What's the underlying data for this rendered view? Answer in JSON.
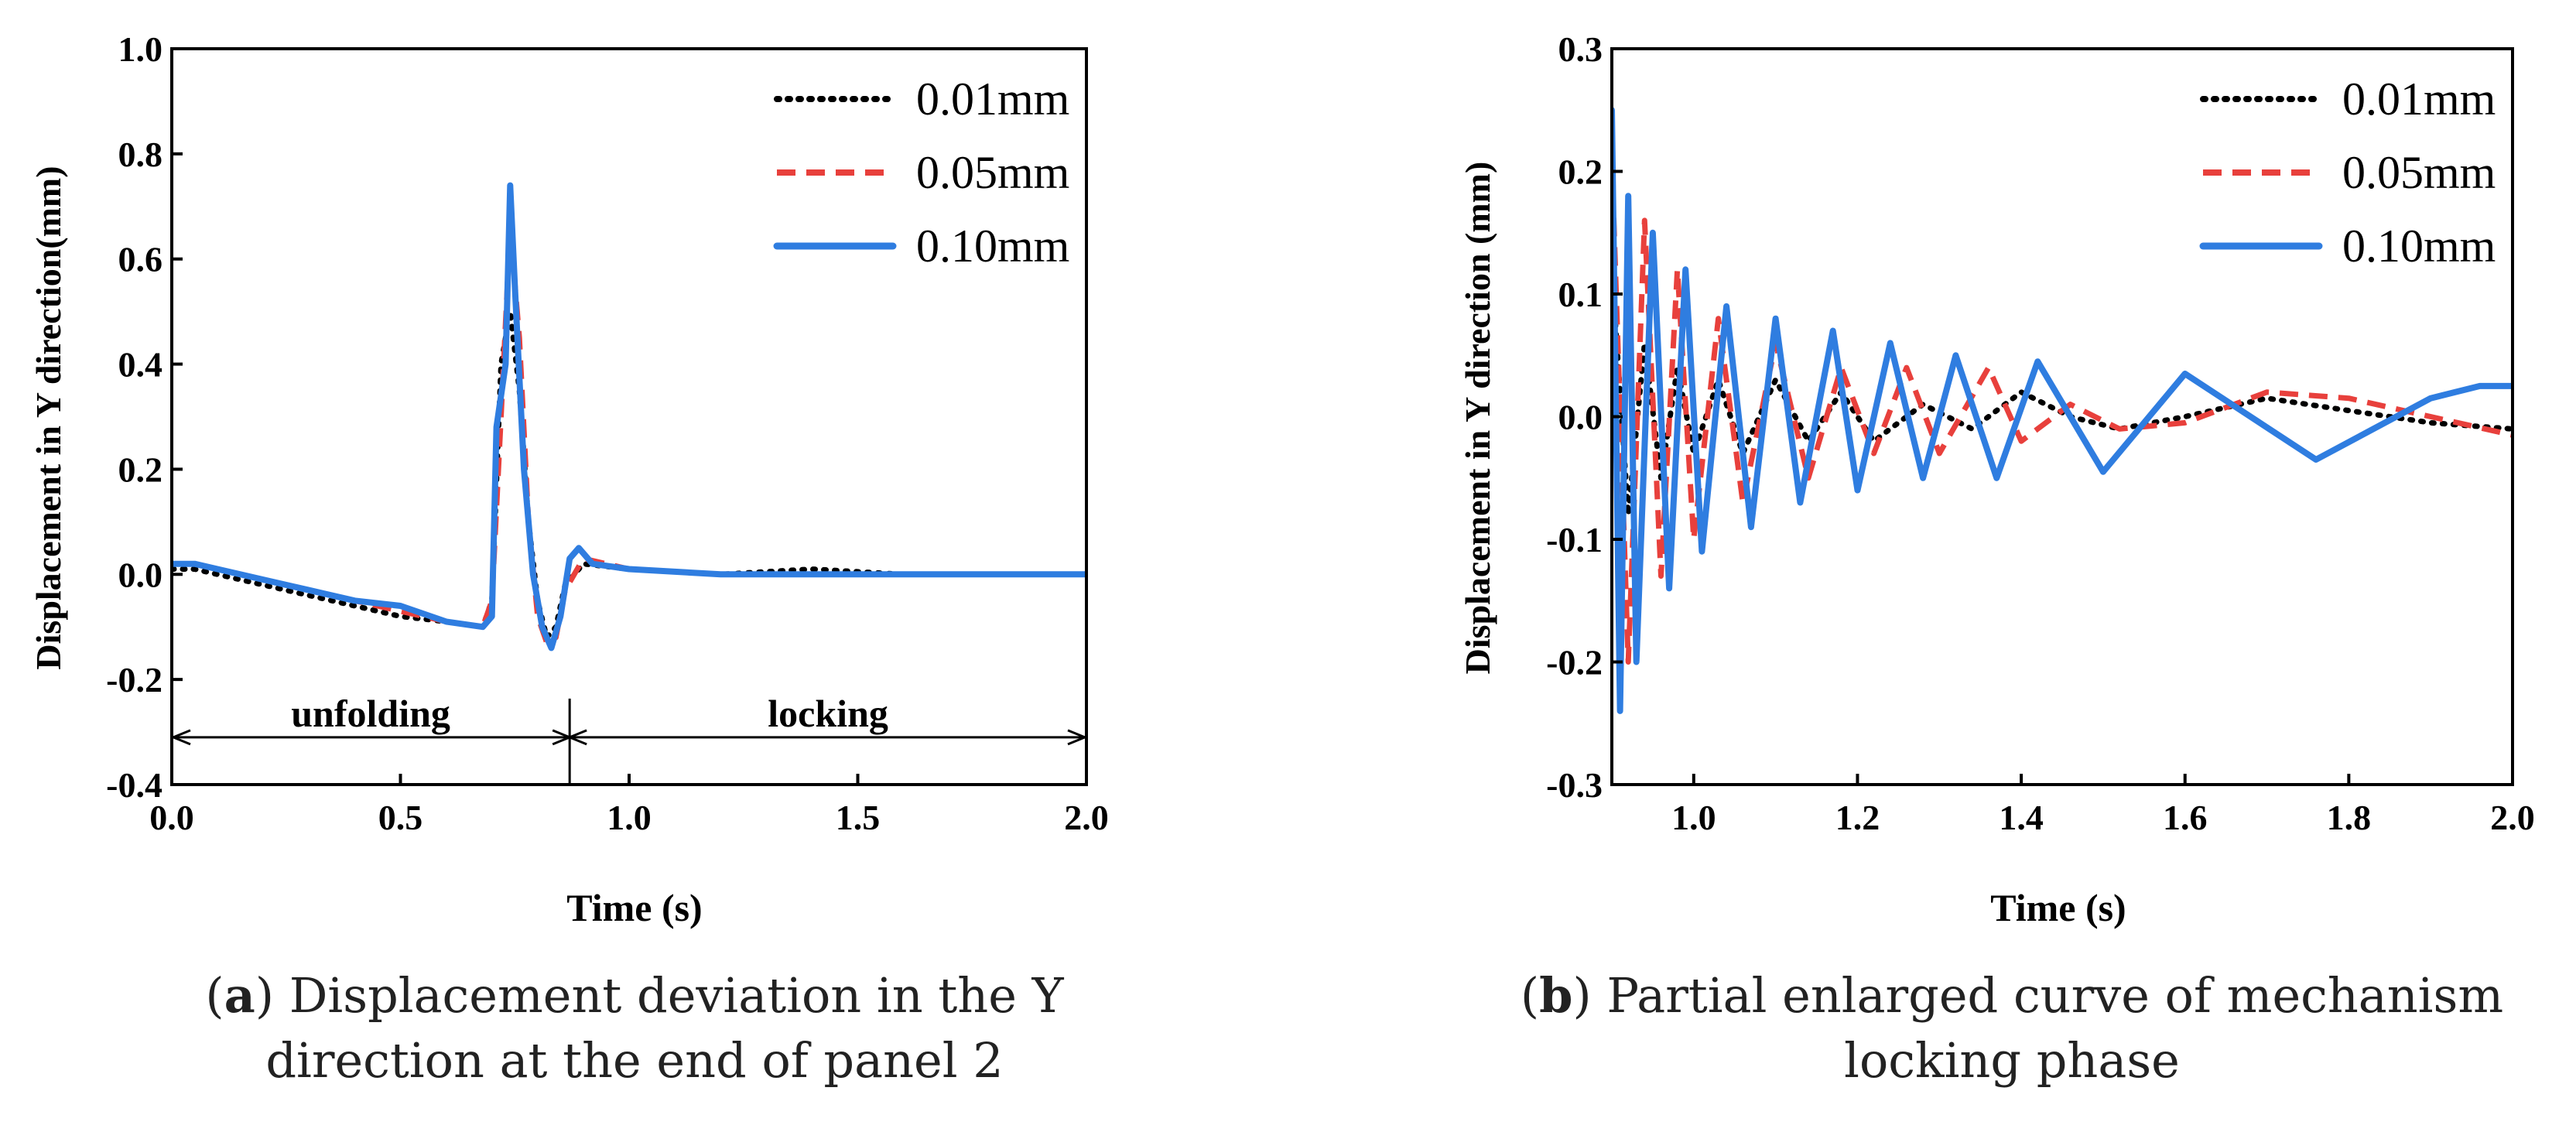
{
  "colors": {
    "s001": "#000000",
    "s005": "#e8403c",
    "s010": "#2f7de0",
    "axis": "#000000"
  },
  "captions": {
    "a_letter": "a",
    "a_text": "Displacement deviation in the Y direction at the end of panel 2",
    "b_letter": "b",
    "b_text": "Partial enlarged curve of mechanism locking phase"
  },
  "chart_data": [
    {
      "id": "a",
      "type": "line",
      "title": "",
      "xlabel": "Time (s)",
      "ylabel": "Displacement in Y direction(mm)",
      "xlim": [
        0.0,
        2.0
      ],
      "ylim": [
        -0.4,
        1.0
      ],
      "xticks": [
        0.0,
        0.5,
        1.0,
        1.5,
        2.0
      ],
      "xtick_labels": [
        "0.0",
        "0.5",
        "1.0",
        "1.5",
        "2.0"
      ],
      "yticks": [
        -0.4,
        -0.2,
        0.0,
        0.2,
        0.4,
        0.6,
        0.8,
        1.0
      ],
      "ytick_labels": [
        "-0.4",
        "-0.2",
        "0.0",
        "0.2",
        "0.4",
        "0.6",
        "0.8",
        "1.0"
      ],
      "legend_position": "top-right",
      "phase_annotations": {
        "y": -0.31,
        "divider_x": 0.87,
        "left_label": "unfolding",
        "right_label": "locking",
        "range": [
          0.0,
          2.0
        ]
      },
      "series": [
        {
          "name": "0.01mm",
          "style": "dotted",
          "points": [
            [
              0.0,
              0.01
            ],
            [
              0.05,
              0.01
            ],
            [
              0.1,
              0.0
            ],
            [
              0.2,
              -0.02
            ],
            [
              0.3,
              -0.04
            ],
            [
              0.4,
              -0.06
            ],
            [
              0.5,
              -0.08
            ],
            [
              0.6,
              -0.09
            ],
            [
              0.68,
              -0.1
            ],
            [
              0.7,
              -0.05
            ],
            [
              0.72,
              0.4
            ],
            [
              0.74,
              0.5
            ],
            [
              0.76,
              0.35
            ],
            [
              0.78,
              0.1
            ],
            [
              0.8,
              -0.05
            ],
            [
              0.82,
              -0.12
            ],
            [
              0.84,
              -0.1
            ],
            [
              0.86,
              -0.02
            ],
            [
              0.9,
              0.02
            ],
            [
              1.0,
              0.01
            ],
            [
              1.2,
              0.0
            ],
            [
              1.4,
              0.01
            ],
            [
              1.6,
              0.0
            ],
            [
              1.8,
              0.0
            ],
            [
              2.0,
              0.0
            ]
          ]
        },
        {
          "name": "0.05mm",
          "style": "dashed",
          "points": [
            [
              0.0,
              0.02
            ],
            [
              0.05,
              0.02
            ],
            [
              0.1,
              0.01
            ],
            [
              0.2,
              -0.01
            ],
            [
              0.3,
              -0.03
            ],
            [
              0.4,
              -0.05
            ],
            [
              0.5,
              -0.07
            ],
            [
              0.6,
              -0.09
            ],
            [
              0.68,
              -0.1
            ],
            [
              0.7,
              -0.05
            ],
            [
              0.72,
              0.3
            ],
            [
              0.74,
              0.66
            ],
            [
              0.76,
              0.45
            ],
            [
              0.78,
              0.1
            ],
            [
              0.8,
              -0.08
            ],
            [
              0.82,
              -0.13
            ],
            [
              0.84,
              -0.12
            ],
            [
              0.86,
              -0.03
            ],
            [
              0.9,
              0.03
            ],
            [
              1.0,
              0.01
            ],
            [
              1.2,
              0.0
            ],
            [
              1.4,
              0.0
            ],
            [
              1.6,
              0.0
            ],
            [
              1.8,
              0.0
            ],
            [
              2.0,
              0.0
            ]
          ]
        },
        {
          "name": "0.10mm",
          "style": "solid",
          "points": [
            [
              0.0,
              0.02
            ],
            [
              0.05,
              0.02
            ],
            [
              0.1,
              0.01
            ],
            [
              0.2,
              -0.01
            ],
            [
              0.3,
              -0.03
            ],
            [
              0.4,
              -0.05
            ],
            [
              0.5,
              -0.06
            ],
            [
              0.6,
              -0.09
            ],
            [
              0.68,
              -0.1
            ],
            [
              0.7,
              -0.08
            ],
            [
              0.71,
              0.28
            ],
            [
              0.73,
              0.4
            ],
            [
              0.74,
              0.74
            ],
            [
              0.75,
              0.55
            ],
            [
              0.77,
              0.2
            ],
            [
              0.79,
              0.0
            ],
            [
              0.81,
              -0.1
            ],
            [
              0.83,
              -0.14
            ],
            [
              0.85,
              -0.08
            ],
            [
              0.87,
              0.03
            ],
            [
              0.89,
              0.05
            ],
            [
              0.92,
              0.02
            ],
            [
              1.0,
              0.01
            ],
            [
              1.2,
              0.0
            ],
            [
              1.4,
              0.0
            ],
            [
              1.6,
              0.0
            ],
            [
              1.8,
              0.0
            ],
            [
              2.0,
              0.0
            ]
          ]
        }
      ]
    },
    {
      "id": "b",
      "type": "line",
      "title": "",
      "xlabel": "Time (s)",
      "ylabel": "Displacement in Y direction (mm)",
      "xlim": [
        0.9,
        2.0
      ],
      "ylim": [
        -0.3,
        0.3
      ],
      "xticks": [
        1.0,
        1.2,
        1.4,
        1.6,
        1.8,
        2.0
      ],
      "xtick_labels": [
        "1.0",
        "1.2",
        "1.4",
        "1.6",
        "1.8",
        "2.0"
      ],
      "yticks": [
        -0.3,
        -0.2,
        -0.1,
        0.0,
        0.1,
        0.2,
        0.3
      ],
      "ytick_labels": [
        "-0.3",
        "-0.2",
        "-0.1",
        "0.0",
        "0.1",
        "0.2",
        "0.3"
      ],
      "legend_position": "top-right",
      "series": [
        {
          "name": "0.01mm",
          "style": "dotted",
          "points": [
            [
              0.9,
              0.12
            ],
            [
              0.92,
              -0.08
            ],
            [
              0.94,
              0.06
            ],
            [
              0.96,
              -0.05
            ],
            [
              0.98,
              0.04
            ],
            [
              1.0,
              -0.03
            ],
            [
              1.03,
              0.03
            ],
            [
              1.06,
              -0.03
            ],
            [
              1.1,
              0.03
            ],
            [
              1.14,
              -0.02
            ],
            [
              1.18,
              0.02
            ],
            [
              1.22,
              -0.02
            ],
            [
              1.28,
              0.01
            ],
            [
              1.34,
              -0.01
            ],
            [
              1.4,
              0.02
            ],
            [
              1.46,
              0.0
            ],
            [
              1.52,
              -0.01
            ],
            [
              1.6,
              0.0
            ],
            [
              1.7,
              0.015
            ],
            [
              1.8,
              0.005
            ],
            [
              1.9,
              -0.005
            ],
            [
              2.0,
              -0.01
            ]
          ]
        },
        {
          "name": "0.05mm",
          "style": "dashed",
          "points": [
            [
              0.9,
              0.21
            ],
            [
              0.92,
              -0.2
            ],
            [
              0.94,
              0.16
            ],
            [
              0.96,
              -0.13
            ],
            [
              0.98,
              0.12
            ],
            [
              1.0,
              -0.1
            ],
            [
              1.03,
              0.08
            ],
            [
              1.06,
              -0.07
            ],
            [
              1.1,
              0.06
            ],
            [
              1.14,
              -0.05
            ],
            [
              1.18,
              0.04
            ],
            [
              1.22,
              -0.03
            ],
            [
              1.26,
              0.04
            ],
            [
              1.3,
              -0.03
            ],
            [
              1.36,
              0.04
            ],
            [
              1.4,
              -0.02
            ],
            [
              1.46,
              0.01
            ],
            [
              1.52,
              -0.01
            ],
            [
              1.6,
              -0.005
            ],
            [
              1.7,
              0.02
            ],
            [
              1.8,
              0.015
            ],
            [
              1.9,
              0.0
            ],
            [
              2.0,
              -0.015
            ]
          ]
        },
        {
          "name": "0.10mm",
          "style": "solid",
          "points": [
            [
              0.9,
              0.25
            ],
            [
              0.91,
              -0.24
            ],
            [
              0.92,
              0.18
            ],
            [
              0.93,
              -0.2
            ],
            [
              0.95,
              0.15
            ],
            [
              0.97,
              -0.14
            ],
            [
              0.99,
              0.12
            ],
            [
              1.01,
              -0.11
            ],
            [
              1.04,
              0.09
            ],
            [
              1.07,
              -0.09
            ],
            [
              1.1,
              0.08
            ],
            [
              1.13,
              -0.07
            ],
            [
              1.17,
              0.07
            ],
            [
              1.2,
              -0.06
            ],
            [
              1.24,
              0.06
            ],
            [
              1.28,
              -0.05
            ],
            [
              1.32,
              0.05
            ],
            [
              1.37,
              -0.05
            ],
            [
              1.42,
              0.045
            ],
            [
              1.5,
              -0.045
            ],
            [
              1.6,
              0.035
            ],
            [
              1.76,
              -0.035
            ],
            [
              1.9,
              0.015
            ],
            [
              1.96,
              0.025
            ],
            [
              2.0,
              0.025
            ]
          ]
        }
      ]
    }
  ]
}
